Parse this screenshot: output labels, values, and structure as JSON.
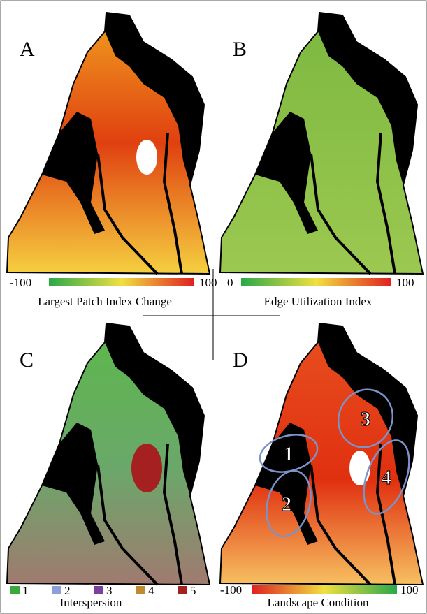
{
  "panels": [
    {
      "letter": "A",
      "scale": {
        "min": "-100",
        "max": "100"
      },
      "title": "Largest Patch Index Change"
    },
    {
      "letter": "B",
      "scale": {
        "min": "0",
        "max": "100"
      },
      "title": "Edge Utilization Index"
    },
    {
      "letter": "C",
      "legend": [
        "1",
        "2",
        "3",
        "4",
        "5"
      ],
      "title": "Interspersion"
    },
    {
      "letter": "D",
      "scale": {
        "min": "-100",
        "max": "100"
      },
      "title": "Landscape Condition",
      "regions": [
        "1",
        "2",
        "3",
        "4"
      ]
    }
  ]
}
